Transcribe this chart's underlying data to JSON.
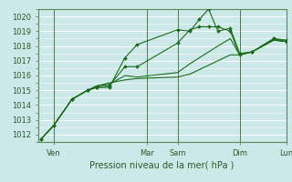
{
  "title": "",
  "xlabel": "Pression niveau de la mer( hPa )",
  "bg_color": "#cce8e8",
  "grid_color": "#ffffff",
  "line_color": "#1a6b1a",
  "yticks": [
    1012,
    1013,
    1014,
    1015,
    1016,
    1017,
    1018,
    1019,
    1020
  ],
  "ylim": [
    1011.5,
    1020.5
  ],
  "xlim": [
    0.0,
    8.0
  ],
  "xtick_positions": [
    0.5,
    3.5,
    4.5,
    6.5,
    8.0
  ],
  "xtick_labels": [
    "Ven",
    "Mar",
    "Sam",
    "Dim",
    "Lun"
  ],
  "vline_positions": [
    0.5,
    3.5,
    4.5,
    6.5,
    8.0
  ],
  "series": [
    [
      1011.7,
      1012.6,
      1014.4,
      1015.0,
      1015.2,
      1015.2,
      1017.2,
      1018.1,
      1019.1,
      1019.0,
      1019.8,
      1020.5,
      1019.0,
      1019.2,
      1017.5,
      1017.6,
      1018.5,
      1018.4
    ],
    [
      1011.7,
      1012.6,
      1014.4,
      1015.0,
      1015.2,
      1015.3,
      1016.6,
      1016.6,
      1018.2,
      1019.1,
      1019.3,
      1019.3,
      1019.3,
      1019.0,
      1017.4,
      1017.6,
      1018.5,
      1018.3
    ],
    [
      1011.7,
      1012.6,
      1014.4,
      1015.0,
      1015.3,
      1015.4,
      1016.0,
      1015.9,
      1016.2,
      1016.8,
      1017.2,
      1017.6,
      1018.0,
      1018.5,
      1017.4,
      1017.6,
      1018.4,
      1018.3
    ],
    [
      1011.7,
      1012.6,
      1014.4,
      1015.0,
      1015.3,
      1015.5,
      1015.7,
      1015.8,
      1015.9,
      1016.1,
      1016.4,
      1016.7,
      1017.0,
      1017.4,
      1017.4,
      1017.6,
      1018.4,
      1018.3
    ]
  ],
  "x_positions": [
    0.1,
    0.5,
    1.1,
    1.6,
    1.9,
    2.3,
    2.8,
    3.2,
    4.5,
    4.9,
    5.2,
    5.5,
    5.8,
    6.2,
    6.5,
    6.9,
    7.6,
    8.0
  ]
}
